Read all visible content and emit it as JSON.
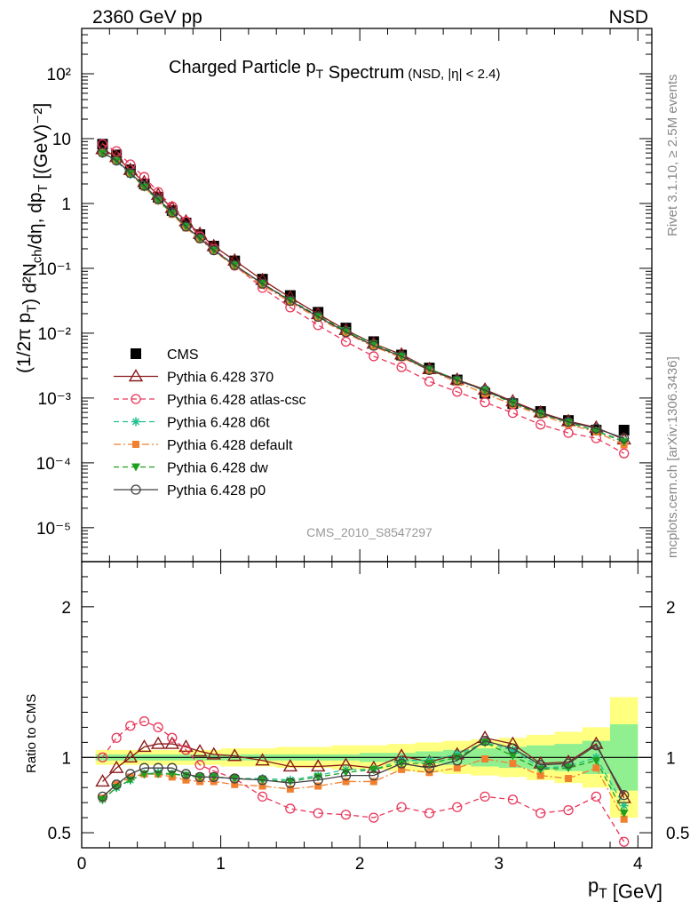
{
  "header": {
    "energy_label": "2360 GeV pp",
    "event_type": "NSD",
    "rivet_label": "Rivet 3.1.10, ≥ 2.5M events",
    "mcplots_label": "mcplots.cern.ch [arXiv:1306.3436]",
    "analysis_id": "CMS_2010_S8547297"
  },
  "chart_data": [
    {
      "type": "scatter",
      "panel": "main",
      "title": "Charged Particle p_T Spectrum",
      "subtitle": "(NSD, |η| < 2.4)",
      "xlabel": "p_T [GeV]",
      "ylabel": "(1/2π p_T) d²N_ch/dη, dp_T [(GeV)⁻²]",
      "xlim": [
        0,
        4.1
      ],
      "ylim": [
        3e-06,
        500
      ],
      "yscale": "log",
      "x_ticks": [
        "0",
        "1",
        "2",
        "3",
        "4"
      ],
      "y_ticks": [
        "10⁻⁵",
        "10⁻⁴",
        "10⁻³",
        "10⁻²",
        "10⁻¹",
        "1",
        "10",
        "10²"
      ],
      "legend_position": "left",
      "x": [
        0.15,
        0.25,
        0.35,
        0.45,
        0.55,
        0.65,
        0.75,
        0.85,
        0.95,
        1.1,
        1.3,
        1.5,
        1.7,
        1.9,
        2.1,
        2.3,
        2.5,
        2.7,
        2.9,
        3.1,
        3.3,
        3.5,
        3.7,
        3.9
      ],
      "series": [
        {
          "name": "CMS",
          "color": "#000000",
          "marker": "square",
          "line": "none",
          "values": [
            8.2,
            5.6,
            3.3,
            2.0,
            1.25,
            0.78,
            0.5,
            0.33,
            0.22,
            0.13,
            0.068,
            0.038,
            0.021,
            0.012,
            0.0074,
            0.0046,
            0.0029,
            0.0019,
            0.00118,
            0.00082,
            0.00062,
            0.00045,
            0.00032,
            0.00032
          ]
        },
        {
          "name": "Pythia 6.428 370",
          "color": "#8b1a1a",
          "marker": "triangle-open",
          "line": "solid",
          "values": [
            6.9,
            5.2,
            3.3,
            2.14,
            1.36,
            0.85,
            0.53,
            0.34,
            0.22,
            0.132,
            0.066,
            0.0355,
            0.0197,
            0.0112,
            0.0069,
            0.0047,
            0.0028,
            0.00192,
            0.00135,
            0.00089,
            0.0006,
            0.00044,
            0.00035,
            0.00023
          ]
        },
        {
          "name": "Pythia 6.428 atlas-csc",
          "color": "#e8365a",
          "marker": "circle-open",
          "line": "dashed",
          "values": [
            8.2,
            6.4,
            4.0,
            2.56,
            1.5,
            0.9,
            0.53,
            0.31,
            0.2,
            0.11,
            0.05,
            0.025,
            0.0133,
            0.0074,
            0.0044,
            0.003,
            0.0018,
            0.00125,
            0.00086,
            0.00059,
            0.00039,
            0.00029,
            0.00024,
            0.00014
          ]
        },
        {
          "name": "Pythia 6.428 d6t",
          "color": "#20c090",
          "marker": "star",
          "line": "dashed",
          "values": [
            5.9,
            4.5,
            2.8,
            1.8,
            1.12,
            0.7,
            0.44,
            0.29,
            0.19,
            0.112,
            0.058,
            0.0325,
            0.0185,
            0.011,
            0.0068,
            0.0045,
            0.0028,
            0.0019,
            0.0013,
            0.00086,
            0.00057,
            0.00042,
            0.00031,
            0.00022
          ]
        },
        {
          "name": "Pythia 6.428 default",
          "color": "#f08030",
          "marker": "square",
          "line": "dash-dot",
          "values": [
            6.0,
            4.6,
            2.9,
            1.78,
            1.1,
            0.68,
            0.42,
            0.28,
            0.185,
            0.107,
            0.055,
            0.03,
            0.017,
            0.01,
            0.0062,
            0.0042,
            0.0027,
            0.00175,
            0.00117,
            0.00079,
            0.00055,
            0.00039,
            0.0003,
            0.00019
          ]
        },
        {
          "name": "Pythia 6.428 dw",
          "color": "#20a020",
          "marker": "triangle-down",
          "line": "dashed",
          "values": [
            5.9,
            4.5,
            2.9,
            1.78,
            1.11,
            0.7,
            0.44,
            0.29,
            0.19,
            0.112,
            0.058,
            0.032,
            0.0183,
            0.0109,
            0.0068,
            0.0044,
            0.0028,
            0.0019,
            0.0013,
            0.00083,
            0.00057,
            0.00042,
            0.00031,
            0.00021
          ]
        },
        {
          "name": "Pythia 6.428 p0",
          "color": "#404040",
          "marker": "circle-open",
          "line": "solid",
          "values": [
            6.1,
            4.6,
            2.95,
            1.88,
            1.17,
            0.73,
            0.44,
            0.29,
            0.19,
            0.112,
            0.058,
            0.0315,
            0.0179,
            0.0104,
            0.0064,
            0.0044,
            0.0027,
            0.00188,
            0.00132,
            0.00086,
            0.00058,
            0.00043,
            0.00034,
            0.00024
          ]
        }
      ]
    },
    {
      "type": "line",
      "panel": "ratio",
      "xlabel": "p_T [GeV]",
      "ylabel": "Ratio to CMS",
      "xlim": [
        0,
        4.1
      ],
      "ylim": [
        0.4,
        2.3
      ],
      "y_ticks": [
        "0.5",
        "1",
        "2"
      ],
      "reference_line": 1,
      "bands": {
        "x_edges": [
          0.1,
          0.2,
          0.3,
          0.4,
          0.5,
          0.6,
          0.7,
          0.8,
          0.9,
          1.0,
          1.2,
          1.4,
          1.6,
          1.8,
          2.0,
          2.2,
          2.4,
          2.6,
          2.8,
          3.0,
          3.2,
          3.4,
          3.6,
          3.8,
          4.0
        ],
        "stat_halfwidth": [
          0.02,
          0.02,
          0.02,
          0.02,
          0.02,
          0.02,
          0.02,
          0.02,
          0.02,
          0.02,
          0.02,
          0.02,
          0.02,
          0.02,
          0.03,
          0.03,
          0.04,
          0.05,
          0.06,
          0.07,
          0.08,
          0.09,
          0.11,
          0.22
        ],
        "total_halfwidth": [
          0.05,
          0.05,
          0.05,
          0.05,
          0.05,
          0.05,
          0.05,
          0.05,
          0.05,
          0.06,
          0.06,
          0.07,
          0.07,
          0.08,
          0.08,
          0.09,
          0.1,
          0.11,
          0.12,
          0.13,
          0.15,
          0.17,
          0.2,
          0.4
        ],
        "stat_color": "#90f090",
        "total_color": "#ffff80"
      },
      "x": [
        0.15,
        0.25,
        0.35,
        0.45,
        0.55,
        0.65,
        0.75,
        0.85,
        0.95,
        1.1,
        1.3,
        1.5,
        1.7,
        1.9,
        2.1,
        2.3,
        2.5,
        2.7,
        2.9,
        3.1,
        3.3,
        3.5,
        3.7,
        3.9
      ],
      "series": [
        {
          "name": "Pythia 6.428 370",
          "values": [
            0.84,
            0.93,
            1.0,
            1.07,
            1.09,
            1.09,
            1.07,
            1.04,
            1.02,
            1.01,
            0.98,
            0.94,
            0.94,
            0.95,
            0.93,
            1.01,
            0.97,
            1.02,
            1.13,
            1.09,
            0.96,
            0.97,
            1.09,
            0.73
          ]
        },
        {
          "name": "Pythia 6.428 atlas-csc",
          "values": [
            1.0,
            1.13,
            1.21,
            1.24,
            1.2,
            1.13,
            1.05,
            0.95,
            0.91,
            0.86,
            0.74,
            0.66,
            0.63,
            0.62,
            0.6,
            0.67,
            0.63,
            0.67,
            0.74,
            0.72,
            0.63,
            0.65,
            0.74,
            0.44
          ]
        },
        {
          "name": "Pythia 6.428 d6t",
          "values": [
            0.72,
            0.8,
            0.85,
            0.89,
            0.9,
            0.89,
            0.88,
            0.87,
            0.87,
            0.86,
            0.86,
            0.85,
            0.88,
            0.92,
            0.92,
            0.98,
            0.98,
            1.02,
            1.1,
            1.05,
            0.93,
            0.94,
            1.0,
            0.68
          ]
        },
        {
          "name": "Pythia 6.428 default",
          "values": [
            0.73,
            0.82,
            0.87,
            0.89,
            0.89,
            0.87,
            0.85,
            0.84,
            0.84,
            0.82,
            0.81,
            0.79,
            0.81,
            0.84,
            0.84,
            0.92,
            0.9,
            0.93,
            0.99,
            0.96,
            0.88,
            0.86,
            0.93,
            0.59
          ]
        },
        {
          "name": "Pythia 6.428 dw",
          "values": [
            0.72,
            0.8,
            0.85,
            0.89,
            0.89,
            0.89,
            0.88,
            0.87,
            0.87,
            0.86,
            0.85,
            0.84,
            0.87,
            0.9,
            0.92,
            0.96,
            0.96,
            1.0,
            1.1,
            1.01,
            0.92,
            0.93,
            0.98,
            0.63
          ]
        },
        {
          "name": "Pythia 6.428 p0",
          "values": [
            0.74,
            0.82,
            0.89,
            0.93,
            0.93,
            0.93,
            0.89,
            0.87,
            0.87,
            0.86,
            0.85,
            0.83,
            0.85,
            0.88,
            0.88,
            0.96,
            0.93,
            0.98,
            1.11,
            1.06,
            0.95,
            0.96,
            1.08,
            0.75
          ]
        }
      ]
    }
  ]
}
